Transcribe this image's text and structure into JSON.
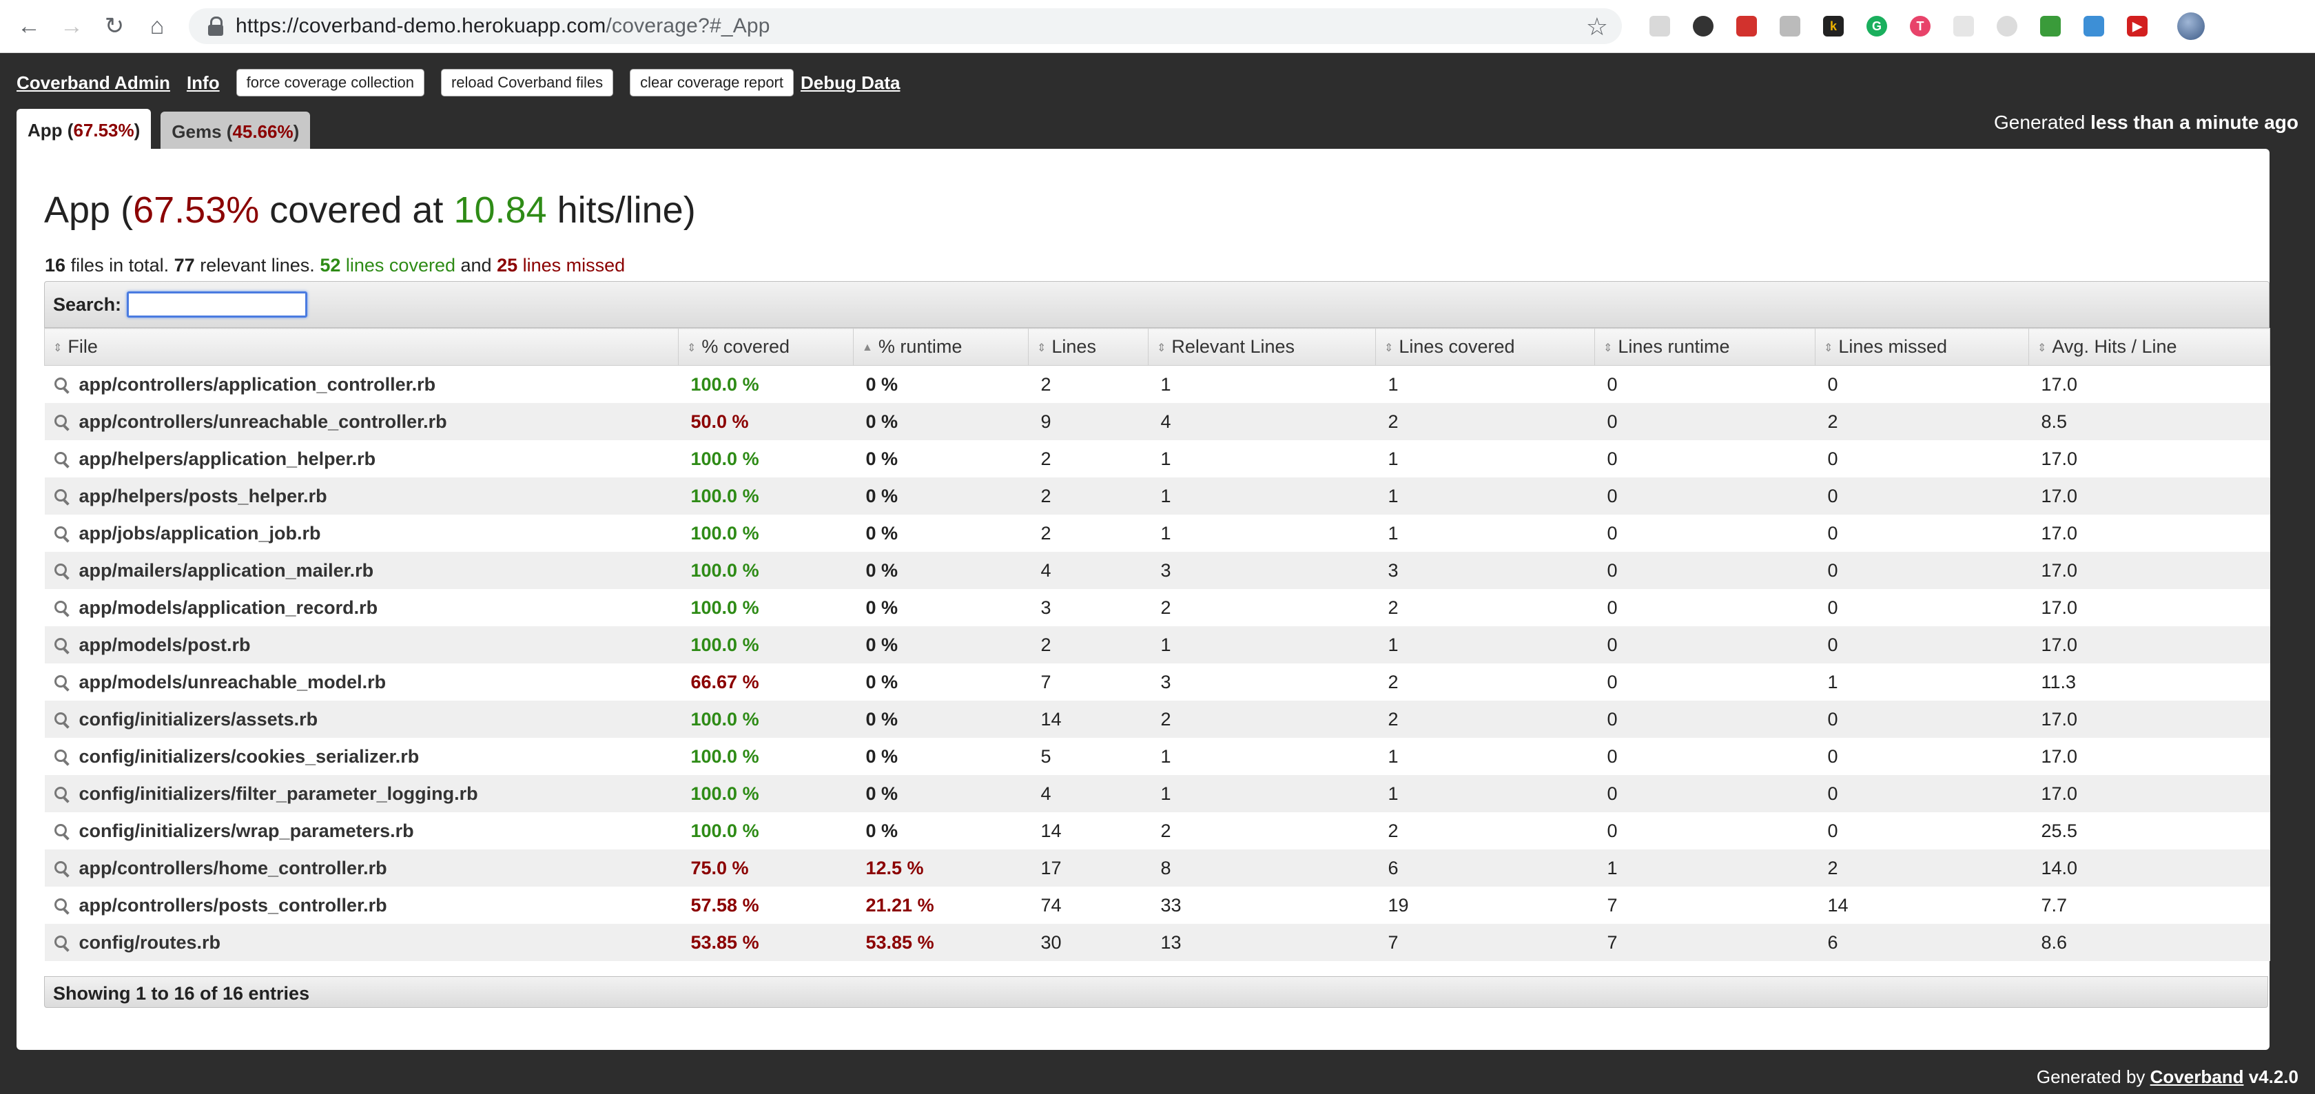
{
  "browser": {
    "url_main": "https://coverband-demo.herokuapp.com",
    "url_path": "/coverage?#_App"
  },
  "admin_nav": {
    "title_link": "Coverband Admin",
    "info_link": "Info",
    "force_button": "force coverage collection",
    "reload_button": "reload Coverband files",
    "clear_button": "clear coverage report",
    "debug_link": "Debug Data"
  },
  "tabs": [
    {
      "label": "App",
      "pct": "67.53%"
    },
    {
      "label": "Gems",
      "pct": "45.66%"
    }
  ],
  "generated_top": {
    "prefix": "Generated",
    "value": "less than a minute ago"
  },
  "heading": {
    "name": "App",
    "pct": "67.53%",
    "mid": "covered at",
    "hits": "10.84",
    "suffix": "hits/line)"
  },
  "summary": {
    "files": "16",
    "files_text": "files in total.",
    "relevant": "77",
    "relevant_text": "relevant lines.",
    "covered": "52",
    "covered_text": "lines covered",
    "and_text": "and",
    "missed": "25",
    "missed_text": "lines missed"
  },
  "search": {
    "label": "Search:",
    "value": ""
  },
  "columns": [
    "File",
    "% covered",
    "% runtime",
    "Lines",
    "Relevant Lines",
    "Lines covered",
    "Lines runtime",
    "Lines missed",
    "Avg. Hits / Line"
  ],
  "rows": [
    {
      "file": "app/controllers/application_controller.rb",
      "covered": "100.0 %",
      "runtime": "0 %",
      "lines": "2",
      "relevant": "1",
      "lcovered": "1",
      "lruntime": "0",
      "missed": "0",
      "avg": "17.0"
    },
    {
      "file": "app/controllers/unreachable_controller.rb",
      "covered": "50.0 %",
      "runtime": "0 %",
      "lines": "9",
      "relevant": "4",
      "lcovered": "2",
      "lruntime": "0",
      "missed": "2",
      "avg": "8.5"
    },
    {
      "file": "app/helpers/application_helper.rb",
      "covered": "100.0 %",
      "runtime": "0 %",
      "lines": "2",
      "relevant": "1",
      "lcovered": "1",
      "lruntime": "0",
      "missed": "0",
      "avg": "17.0"
    },
    {
      "file": "app/helpers/posts_helper.rb",
      "covered": "100.0 %",
      "runtime": "0 %",
      "lines": "2",
      "relevant": "1",
      "lcovered": "1",
      "lruntime": "0",
      "missed": "0",
      "avg": "17.0"
    },
    {
      "file": "app/jobs/application_job.rb",
      "covered": "100.0 %",
      "runtime": "0 %",
      "lines": "2",
      "relevant": "1",
      "lcovered": "1",
      "lruntime": "0",
      "missed": "0",
      "avg": "17.0"
    },
    {
      "file": "app/mailers/application_mailer.rb",
      "covered": "100.0 %",
      "runtime": "0 %",
      "lines": "4",
      "relevant": "3",
      "lcovered": "3",
      "lruntime": "0",
      "missed": "0",
      "avg": "17.0"
    },
    {
      "file": "app/models/application_record.rb",
      "covered": "100.0 %",
      "runtime": "0 %",
      "lines": "3",
      "relevant": "2",
      "lcovered": "2",
      "lruntime": "0",
      "missed": "0",
      "avg": "17.0"
    },
    {
      "file": "app/models/post.rb",
      "covered": "100.0 %",
      "runtime": "0 %",
      "lines": "2",
      "relevant": "1",
      "lcovered": "1",
      "lruntime": "0",
      "missed": "0",
      "avg": "17.0"
    },
    {
      "file": "app/models/unreachable_model.rb",
      "covered": "66.67 %",
      "runtime": "0 %",
      "lines": "7",
      "relevant": "3",
      "lcovered": "2",
      "lruntime": "0",
      "missed": "1",
      "avg": "11.3"
    },
    {
      "file": "config/initializers/assets.rb",
      "covered": "100.0 %",
      "runtime": "0 %",
      "lines": "14",
      "relevant": "2",
      "lcovered": "2",
      "lruntime": "0",
      "missed": "0",
      "avg": "17.0"
    },
    {
      "file": "config/initializers/cookies_serializer.rb",
      "covered": "100.0 %",
      "runtime": "0 %",
      "lines": "5",
      "relevant": "1",
      "lcovered": "1",
      "lruntime": "0",
      "missed": "0",
      "avg": "17.0"
    },
    {
      "file": "config/initializers/filter_parameter_logging.rb",
      "covered": "100.0 %",
      "runtime": "0 %",
      "lines": "4",
      "relevant": "1",
      "lcovered": "1",
      "lruntime": "0",
      "missed": "0",
      "avg": "17.0"
    },
    {
      "file": "config/initializers/wrap_parameters.rb",
      "covered": "100.0 %",
      "runtime": "0 %",
      "lines": "14",
      "relevant": "2",
      "lcovered": "2",
      "lruntime": "0",
      "missed": "0",
      "avg": "25.5"
    },
    {
      "file": "app/controllers/home_controller.rb",
      "covered": "75.0 %",
      "runtime": "12.5 %",
      "lines": "17",
      "relevant": "8",
      "lcovered": "6",
      "lruntime": "1",
      "missed": "2",
      "avg": "14.0"
    },
    {
      "file": "app/controllers/posts_controller.rb",
      "covered": "57.58 %",
      "runtime": "21.21 %",
      "lines": "74",
      "relevant": "33",
      "lcovered": "19",
      "lruntime": "7",
      "missed": "14",
      "avg": "7.7"
    },
    {
      "file": "config/routes.rb",
      "covered": "53.85 %",
      "runtime": "53.85 %",
      "lines": "30",
      "relevant": "13",
      "lcovered": "7",
      "lruntime": "7",
      "missed": "6",
      "avg": "8.6"
    }
  ],
  "table_footer": "Showing 1 to 16 of 16 entries",
  "generated_bottom": {
    "prefix": "Generated by",
    "link": "Coverband",
    "version": "v4.2.0"
  },
  "colors": {
    "good": "#2e8b16",
    "bad": "#8b0000"
  }
}
